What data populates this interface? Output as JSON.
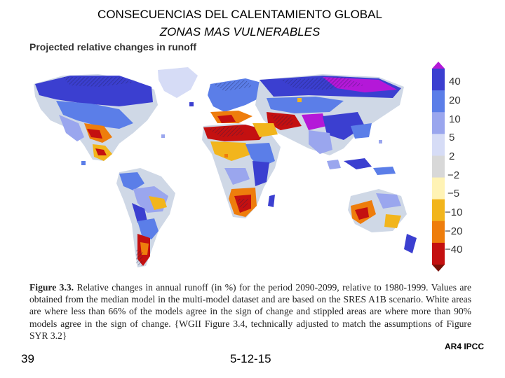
{
  "slide": {
    "title": "CONSECUENCIAS DEL CALENTAMIENTO GLOBAL",
    "subtitle": "ZONAS MAS VULNERABLES",
    "page_number": "39",
    "date": "5-12-15",
    "source": "AR4 IPCC"
  },
  "map": {
    "heading": "Projected relative changes in runoff",
    "ocean_color": "#ffffff",
    "neutral_land_color": "#cfd8e6"
  },
  "legend": {
    "labels": [
      "40",
      "20",
      "10",
      "5",
      "2",
      "−2",
      "−5",
      "−10",
      "−20",
      "−40"
    ],
    "colors": [
      "#b418d8",
      "#3b3fd0",
      "#5b7ee8",
      "#9aa6ee",
      "#d6dcf6",
      "#d8d8d8",
      "#fff3b5",
      "#f2b51c",
      "#ee7d0c",
      "#c41010",
      "#7a1006"
    ]
  },
  "caption": {
    "figure_label": "Figure 3.3.",
    "text": "Relative changes in annual runoff (in %) for the period 2090-2099, relative to 1980-1999. Values are obtained from the median model in the multi-model dataset and are based on the SRES A1B scenario. White areas are where less than 66% of the models agree in the sign of change and stippled areas are where more than 90% models agree in the sign of change. {WGII Figure 3.4, technically adjusted to match the assumptions of Figure SYR 3.2}"
  }
}
